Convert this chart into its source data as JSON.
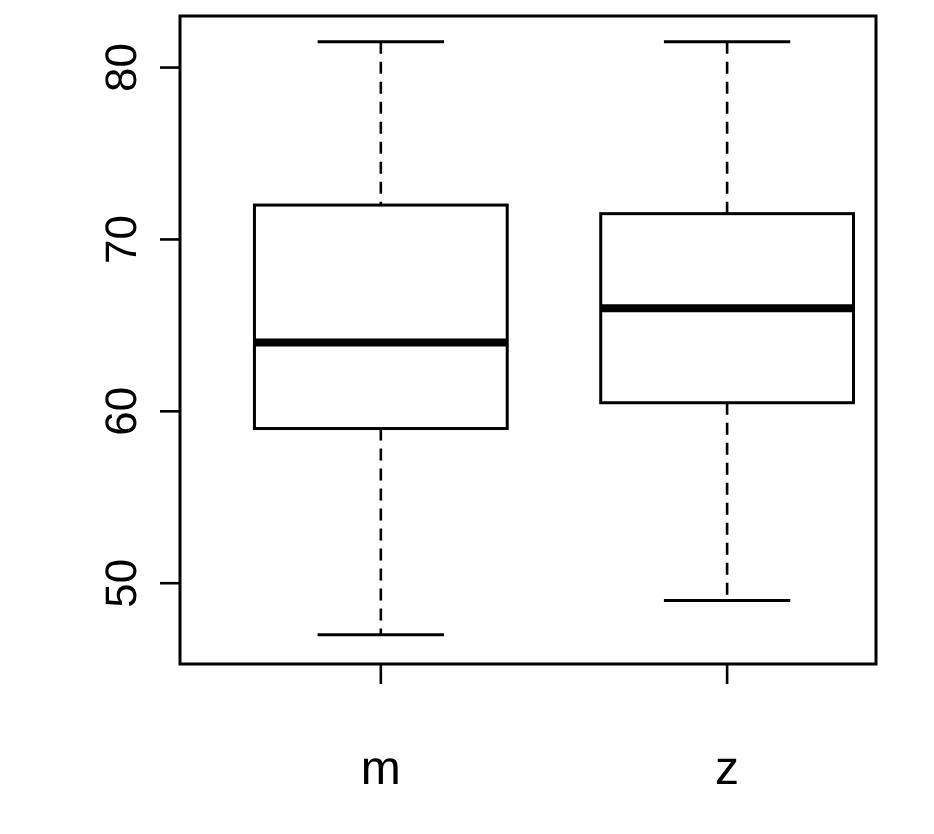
{
  "chart_data": {
    "type": "box",
    "categories": [
      "m",
      "z"
    ],
    "boxes": [
      {
        "low": 47,
        "q1": 59,
        "median": 64,
        "q3": 72,
        "high": 81.5
      },
      {
        "low": 49,
        "q1": 60.5,
        "median": 66,
        "q3": 71.5,
        "high": 81.5
      }
    ],
    "ylim": [
      45.3,
      83
    ],
    "yticks": [
      50,
      60,
      70,
      80
    ],
    "grid": false,
    "color": "#000000"
  }
}
